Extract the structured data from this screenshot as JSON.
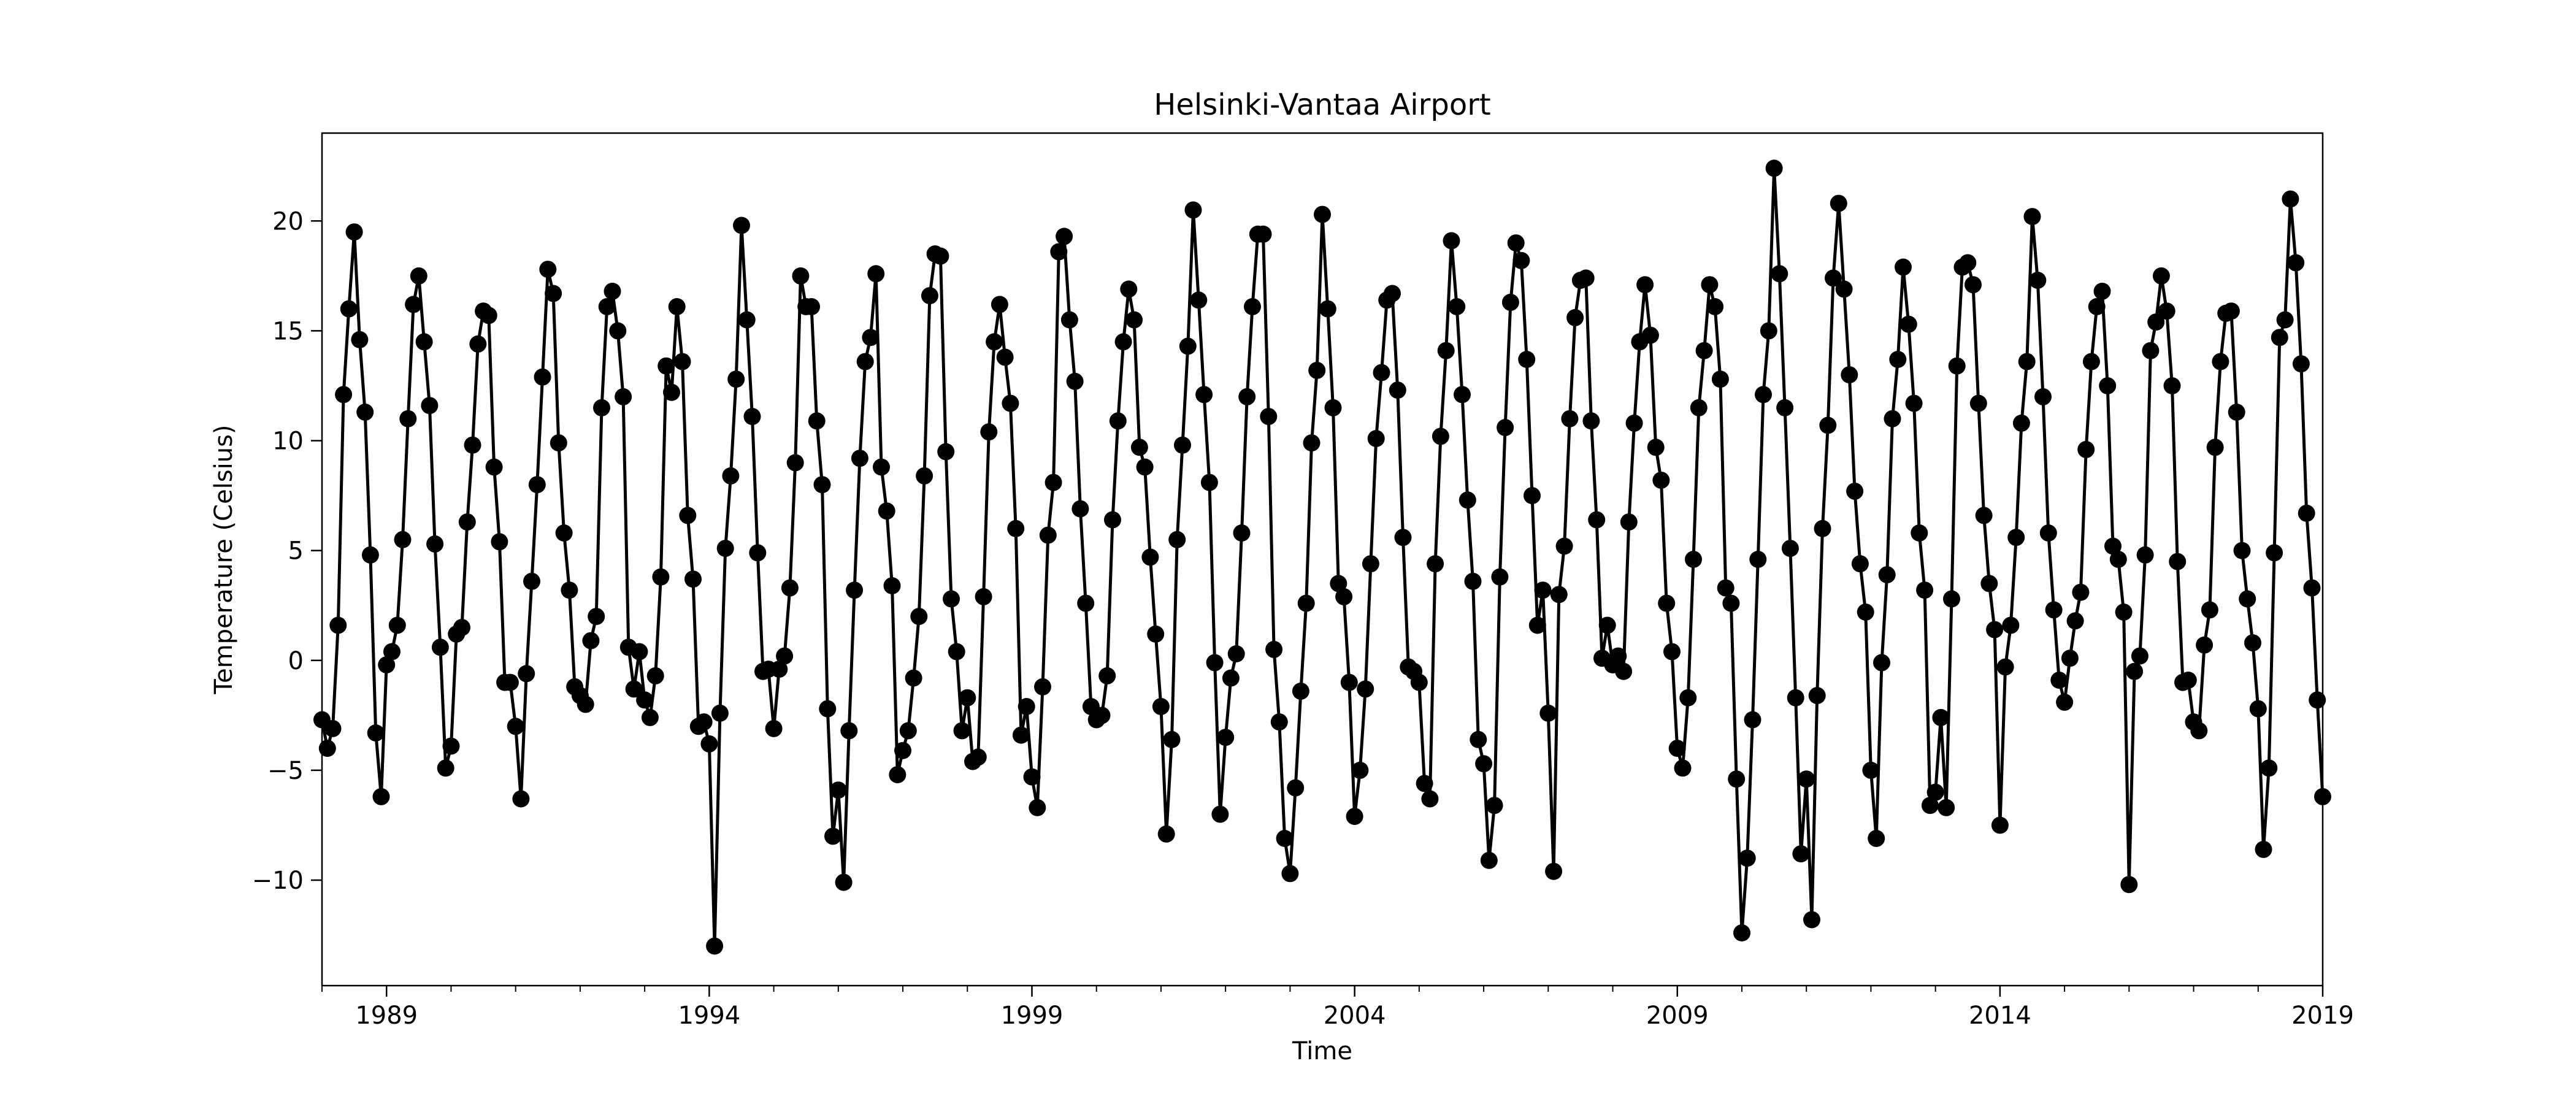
{
  "chart_data": {
    "type": "line",
    "title": "Helsinki-Vantaa Airport",
    "xlabel": "Time",
    "ylabel": "Temperature (Celsius)",
    "xlim": [
      "1988-01",
      "2019-01"
    ],
    "ylim": [
      -14.8,
      24.0
    ],
    "x_ticks": [
      "1989",
      "1994",
      "1999",
      "2004",
      "2009",
      "2014",
      "2019"
    ],
    "y_ticks": [
      -10,
      -5,
      0,
      5,
      10,
      15,
      20
    ],
    "grid": false,
    "legend": "none",
    "marker": "circle",
    "color": "#000000",
    "series": [
      {
        "start": "1988-01",
        "frequency": "monthly",
        "values": [
          -2.7,
          -4.0,
          -3.1,
          1.6,
          12.1,
          16.0,
          19.5,
          14.6,
          11.3,
          4.8,
          -3.3,
          -6.2,
          -0.2,
          0.4,
          1.6,
          5.5,
          11.0,
          16.2,
          17.5,
          14.5,
          11.6,
          5.3,
          0.6,
          -4.9,
          -3.9,
          1.2,
          1.5,
          6.3,
          9.8,
          14.4,
          15.9,
          15.7,
          8.8,
          5.4,
          -1.0,
          -1.0,
          -3.0,
          -6.3,
          -0.6,
          3.6,
          8.0,
          12.9,
          17.8,
          16.7,
          9.9,
          5.8,
          3.2,
          -1.2,
          -1.6,
          -2.0,
          0.9,
          2.0,
          11.5,
          16.1,
          16.8,
          15.0,
          12.0,
          0.6,
          -1.3,
          0.4,
          -1.8,
          -2.6,
          -0.7,
          3.8,
          13.4,
          12.2,
          16.1,
          13.6,
          6.6,
          3.7,
          -3.0,
          -2.8,
          -3.8,
          -13.0,
          -2.4,
          5.1,
          8.4,
          12.8,
          19.8,
          15.5,
          11.1,
          4.9,
          -0.5,
          -0.4,
          -3.1,
          -0.4,
          0.2,
          3.3,
          9.0,
          17.5,
          16.1,
          16.1,
          10.9,
          8.0,
          -2.2,
          -8.0,
          -5.9,
          -10.1,
          -3.2,
          3.2,
          9.2,
          13.6,
          14.7,
          17.6,
          8.8,
          6.8,
          3.4,
          -5.2,
          -4.1,
          -3.2,
          -0.8,
          2.0,
          8.4,
          16.6,
          18.5,
          18.4,
          9.5,
          2.8,
          0.4,
          -3.2,
          -1.7,
          -4.6,
          -4.4,
          2.9,
          10.4,
          14.5,
          16.2,
          13.8,
          11.7,
          6.0,
          -3.4,
          -2.1,
          -5.3,
          -6.7,
          -1.2,
          5.7,
          8.1,
          18.6,
          19.3,
          15.5,
          12.7,
          6.9,
          2.6,
          -2.1,
          -2.7,
          -2.5,
          -0.7,
          6.4,
          10.9,
          14.5,
          16.9,
          15.5,
          9.7,
          8.8,
          4.7,
          1.2,
          -2.1,
          -7.9,
          -3.6,
          5.5,
          9.8,
          14.3,
          20.5,
          16.4,
          12.1,
          8.1,
          -0.1,
          -7.0,
          -3.5,
          -0.8,
          0.3,
          5.8,
          12.0,
          16.1,
          19.4,
          19.4,
          11.1,
          0.5,
          -2.8,
          -8.1,
          -9.7,
          -5.8,
          -1.4,
          2.6,
          9.9,
          13.2,
          20.3,
          16.0,
          11.5,
          3.5,
          2.9,
          -1.0,
          -7.1,
          -5.0,
          -1.3,
          4.4,
          10.1,
          13.1,
          16.4,
          16.7,
          12.3,
          5.6,
          -0.3,
          -0.5,
          -1.0,
          -5.6,
          -6.3,
          4.4,
          10.2,
          14.1,
          19.1,
          16.1,
          12.1,
          7.3,
          3.6,
          -3.6,
          -4.7,
          -9.1,
          -6.6,
          3.8,
          10.6,
          16.3,
          19.0,
          18.2,
          13.7,
          7.5,
          1.6,
          3.2,
          -2.4,
          -9.6,
          3.0,
          5.2,
          11.0,
          15.6,
          17.3,
          17.4,
          10.9,
          6.4,
          0.1,
          1.6,
          -0.2,
          0.2,
          -0.5,
          6.3,
          10.8,
          14.5,
          17.1,
          14.8,
          9.7,
          8.2,
          2.6,
          0.4,
          -4.0,
          -4.9,
          -1.7,
          4.6,
          11.5,
          14.1,
          17.1,
          16.1,
          12.8,
          3.3,
          2.6,
          -5.4,
          -12.4,
          -9.0,
          -2.7,
          4.6,
          12.1,
          15.0,
          22.4,
          17.6,
          11.5,
          5.1,
          -1.7,
          -8.8,
          -5.4,
          -11.8,
          -1.6,
          6.0,
          10.7,
          17.4,
          20.8,
          16.9,
          13.0,
          7.7,
          4.4,
          2.2,
          -5.0,
          -8.1,
          -0.1,
          3.9,
          11.0,
          13.7,
          17.9,
          15.3,
          11.7,
          5.8,
          3.2,
          -6.6,
          -6.0,
          -2.6,
          -6.7,
          2.8,
          13.4,
          17.9,
          18.1,
          17.1,
          11.7,
          6.6,
          3.5,
          1.4,
          -7.5,
          -0.3,
          1.6,
          5.6,
          10.8,
          13.6,
          20.2,
          17.3,
          12.0,
          5.8,
          2.3,
          -0.9,
          -1.9,
          0.1,
          1.8,
          3.1,
          9.6,
          13.6,
          16.1,
          16.8,
          12.5,
          5.2,
          4.6,
          2.2,
          -10.2,
          -0.5,
          0.2,
          4.8,
          14.1,
          15.4,
          17.5,
          15.9,
          12.5,
          4.5,
          -1.0,
          -0.9,
          -2.8,
          -3.2,
          0.7,
          2.3,
          9.7,
          13.6,
          15.8,
          15.9,
          11.3,
          5.0,
          2.8,
          0.8,
          -2.2,
          -8.6,
          -4.9,
          4.9,
          14.7,
          15.5,
          21.0,
          18.1,
          13.5,
          6.7,
          3.3,
          -1.8,
          -6.2
        ]
      }
    ]
  }
}
